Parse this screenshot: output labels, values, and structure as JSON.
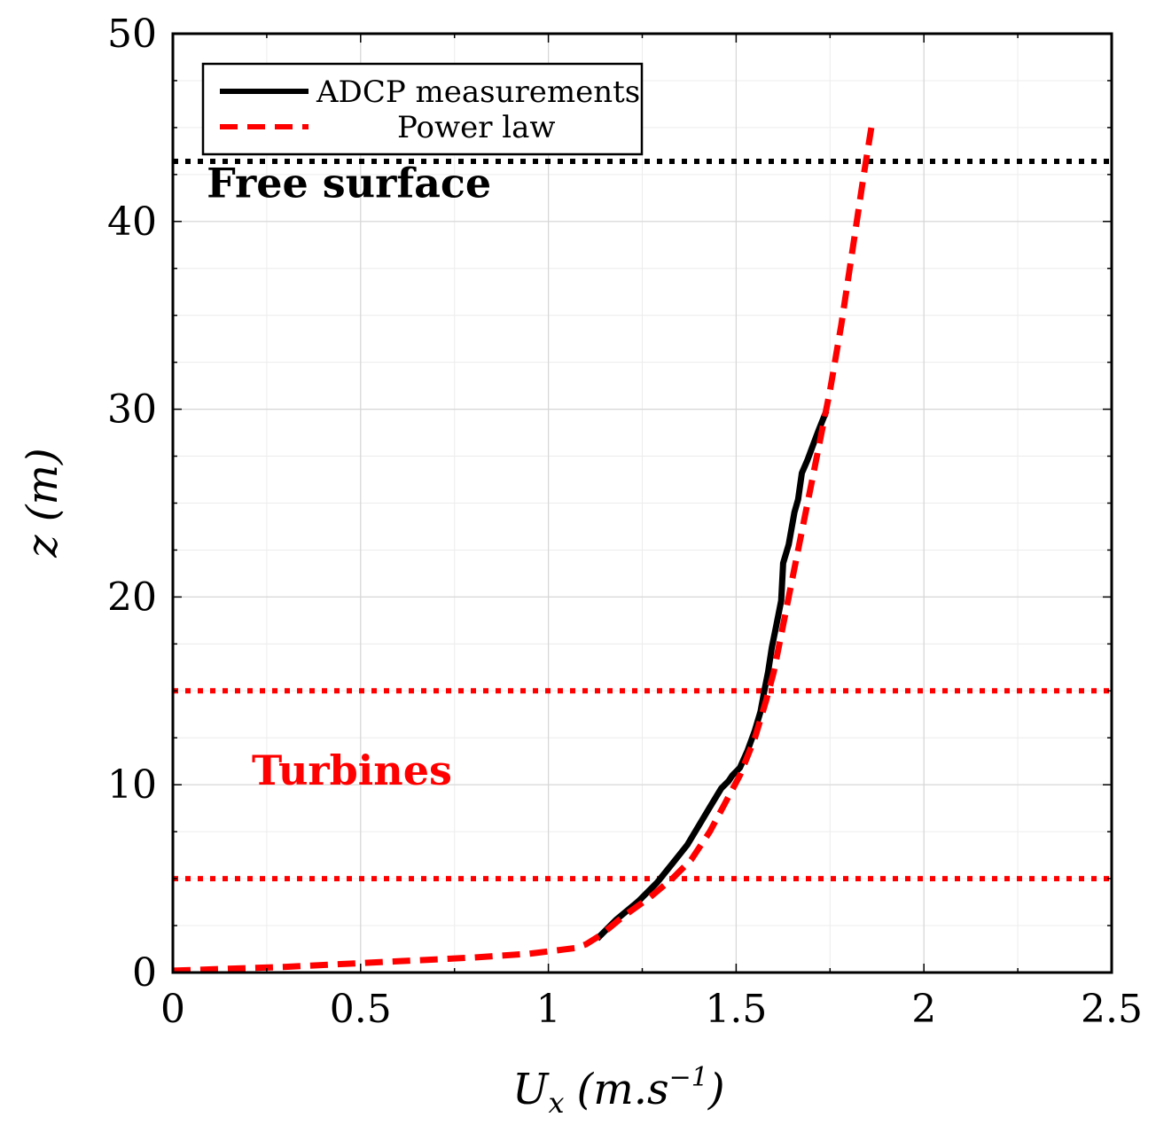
{
  "chart_data": {
    "type": "line",
    "xlabel_main": "U",
    "xlabel_sub": "x",
    "xlabel_unit": "(m.s",
    "xlabel_exp": "−1",
    "xlabel_close": ")",
    "ylabel": "z (m)",
    "xlim": [
      0,
      2.5
    ],
    "ylim": [
      0,
      50
    ],
    "x_ticks": [
      0,
      0.5,
      1,
      1.5,
      2,
      2.5
    ],
    "y_ticks": [
      0,
      10,
      20,
      30,
      40,
      50
    ],
    "x_tick_labels": [
      "0",
      "0.5",
      "1",
      "1.5",
      "2",
      "2.5"
    ],
    "y_tick_labels": [
      "0",
      "10",
      "20",
      "30",
      "40",
      "50"
    ],
    "grid": true,
    "legend_position": "top-left",
    "series": [
      {
        "name": "ADCP measurements",
        "style": "solid",
        "color": "#000000",
        "x": [
          1.13,
          1.18,
          1.24,
          1.29,
          1.33,
          1.37,
          1.4,
          1.43,
          1.46,
          1.48,
          1.49,
          1.51,
          1.53,
          1.55,
          1.565,
          1.575,
          1.585,
          1.595,
          1.605,
          1.62,
          1.625,
          1.64,
          1.655,
          1.665,
          1.675,
          1.69,
          1.705,
          1.72,
          1.74
        ],
        "y": [
          1.8,
          2.8,
          3.8,
          4.8,
          5.8,
          6.8,
          7.8,
          8.8,
          9.8,
          10.2,
          10.5,
          10.9,
          11.8,
          12.9,
          13.9,
          15.0,
          16.0,
          17.3,
          18.3,
          19.8,
          21.8,
          22.8,
          24.5,
          25.2,
          26.6,
          27.3,
          28.1,
          28.9,
          29.9
        ]
      },
      {
        "name": "Power law",
        "style": "dashed",
        "color": "#ff0000",
        "x": [
          0.0,
          0.3,
          0.6,
          0.8,
          0.95,
          1.03,
          1.07,
          1.1,
          1.14,
          1.2,
          1.27,
          1.33,
          1.38,
          1.43,
          1.47,
          1.51,
          1.55,
          1.58,
          1.6,
          1.625,
          1.65,
          1.67,
          1.69,
          1.71,
          1.73,
          1.75,
          1.78,
          1.81,
          1.84,
          1.86
        ],
        "y": [
          0.1,
          0.3,
          0.6,
          0.8,
          1.0,
          1.2,
          1.3,
          1.5,
          2.0,
          3.0,
          4.0,
          5.0,
          6.0,
          7.5,
          9.0,
          10.5,
          12.5,
          14.5,
          16.0,
          18.5,
          21.0,
          23.0,
          25.0,
          27.0,
          29.0,
          31.0,
          34.5,
          38.5,
          42.5,
          45.0
        ]
      }
    ],
    "reference_lines": [
      {
        "name": "free-surface-line",
        "y": 43.2,
        "color": "#000000"
      },
      {
        "name": "turbine-top-line",
        "y": 15.0,
        "color": "#ff0000"
      },
      {
        "name": "turbine-bottom-line",
        "y": 5.0,
        "color": "#ff0000"
      }
    ],
    "annotations": [
      {
        "name": "free-surface-label",
        "text": "Free surface",
        "x": 0.09,
        "y": 41.3,
        "color": "#000000"
      },
      {
        "name": "turbines-label",
        "text": "Turbines",
        "x": 0.21,
        "y": 10.0,
        "color": "#ff0000"
      }
    ]
  }
}
